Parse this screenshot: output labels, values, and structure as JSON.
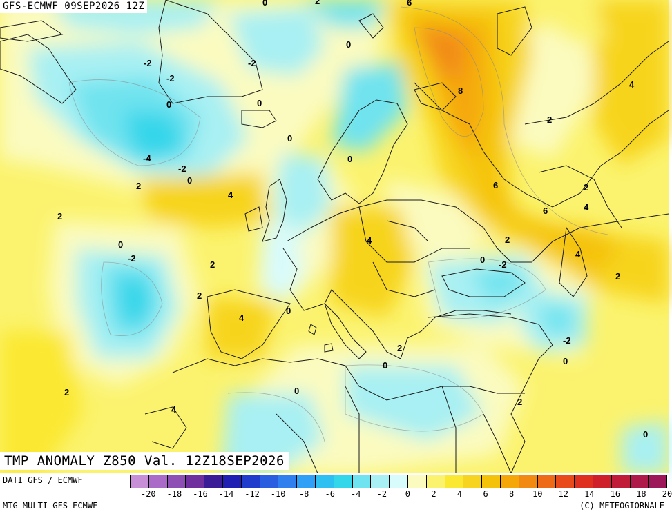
{
  "run_label": "GFS-ECMWF 09SEP2026 12Z",
  "valid_label": "TMP ANOMALY Z850 Val. 12Z18SEP2026",
  "footer": {
    "source": "DATI GFS / ECMWF",
    "model": "MTG-MULTI GFS-ECMWF",
    "copyright": "(C) METEOGIORNALE"
  },
  "legend": {
    "swatches": [
      "#c78fd6",
      "#a96bc7",
      "#8e4fb4",
      "#6f2f9c",
      "#3a1c96",
      "#1f1fb4",
      "#1f3ccc",
      "#2a5ee0",
      "#2f7fef",
      "#2fa0f5",
      "#2fc0f2",
      "#34d6ea",
      "#6fe3ef",
      "#a8f0f3",
      "#d8fbfb",
      "#fbfbc0",
      "#fbf36e",
      "#fbe833",
      "#f7d41f",
      "#f5c20a",
      "#f5a70a",
      "#f28a12",
      "#ee6a16",
      "#e84a1a",
      "#df2f1f",
      "#cf1f2a",
      "#c01c3a",
      "#ae1a4a",
      "#9c1858"
    ],
    "ticks": [
      "-20",
      "-18",
      "-16",
      "-14",
      "-12",
      "-10",
      "-8",
      "-6",
      "-4",
      "-2",
      "0",
      "2",
      "4",
      "6",
      "8",
      "10",
      "12",
      "14",
      "16",
      "18",
      "20"
    ]
  },
  "contour_labels": [
    "0",
    "2",
    "6",
    "-2",
    "-2",
    "0",
    "-2",
    "0",
    "0",
    "8",
    "4",
    "2",
    "0",
    "0",
    "-4",
    "-2",
    "0",
    "2",
    "4",
    "6",
    "2",
    "4",
    "6",
    "2",
    "4",
    "4",
    "0",
    "-2",
    "0",
    "-2",
    "2",
    "2",
    "4",
    "2",
    "2",
    "0",
    "-2",
    "2",
    "0",
    "0",
    "2",
    "0",
    "2",
    "4",
    "0"
  ]
}
